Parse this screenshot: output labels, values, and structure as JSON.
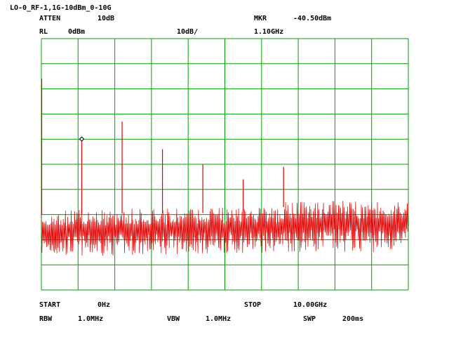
{
  "title": "LO-0_RF-1,1G-10dBm_0-10G",
  "header": {
    "atten_label": "ATTEN",
    "atten_value": "10dB",
    "mkr_label": "MKR",
    "mkr_value": "-40.50dBm",
    "rl_label": "RL",
    "rl_value": "0dBm",
    "scale_value": "10dB/",
    "mkr_freq": "1.10GHz"
  },
  "footer": {
    "start_label": "START",
    "start_value": "0Hz",
    "stop_label": "STOP",
    "stop_value": "10.00GHz",
    "rbw_label": "RBW",
    "rbw_value": "1.0MHz",
    "vbw_label": "VBW",
    "vbw_value": "1.0MHz",
    "swp_label": "SWP",
    "swp_value": "200ms"
  },
  "colors": {
    "grid": "#00a000",
    "trace": "#e00000",
    "text": "#000000",
    "background": "#ffffff"
  },
  "chart_data": {
    "type": "line",
    "title": "LO-0_RF-1,1G-10dBm_0-10G",
    "xlabel": "",
    "ylabel": "",
    "xlim": [
      0,
      10.0
    ],
    "ylim": [
      -100,
      0
    ],
    "x_unit": "GHz",
    "y_unit": "dBm",
    "grid": true,
    "grid_divisions": {
      "x": 10,
      "y": 10
    },
    "marker": {
      "x": 1.1,
      "y": -40.5
    },
    "peaks": [
      {
        "x": 0.0,
        "y": -16
      },
      {
        "x": 1.1,
        "y": -40.5
      },
      {
        "x": 2.2,
        "y": -33
      },
      {
        "x": 3.3,
        "y": -44
      },
      {
        "x": 4.4,
        "y": -50
      },
      {
        "x": 5.5,
        "y": -56
      },
      {
        "x": 6.6,
        "y": -51
      }
    ],
    "noise_floor": [
      {
        "x": 0.0,
        "top": -68,
        "bottom": -87
      },
      {
        "x": 6.5,
        "top": -67,
        "bottom": -85
      },
      {
        "x": 6.6,
        "top": -65,
        "bottom": -85
      },
      {
        "x": 10.0,
        "top": -64,
        "bottom": -85
      }
    ]
  }
}
